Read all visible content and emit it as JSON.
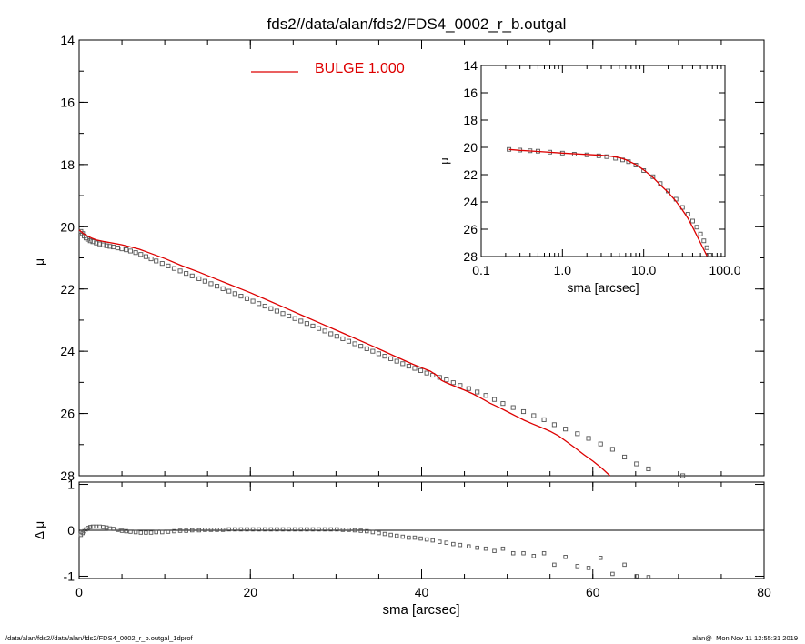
{
  "title": "fds2//data/alan/fds2/FDS4_0002_r_b.outgal",
  "footer": {
    "left": "/data/alan/fds2//data/alan/fds2/FDS4_0002_r_b.outgal_1dprof",
    "right": "alan@  Mon Nov 11 12:55:31 2019"
  },
  "colors": {
    "model": "#dd0000",
    "data": "#555555",
    "axes": "#000000"
  },
  "chart_data": [
    {
      "id": "main",
      "type": "scatter",
      "ylabel": "μ",
      "xlim": [
        0,
        80
      ],
      "ylim": [
        28,
        14
      ],
      "y_inverted": true,
      "x_ticks": [
        0,
        20,
        40,
        60,
        80
      ],
      "x_minor_step": 5,
      "y_ticks": [
        14,
        16,
        18,
        20,
        22,
        24,
        26,
        28
      ],
      "y_tick_labels": [
        "14",
        "16",
        "18",
        "20",
        "22",
        "24",
        "26",
        "28"
      ],
      "y_minor_step": 1,
      "legend": {
        "label": "BULGE",
        "value": "1.000",
        "text": "BULGE  1.000",
        "placement": "top-center"
      },
      "series": [
        {
          "role": "data",
          "marker": "open-square",
          "x": [
            0.2,
            0.4,
            0.6,
            0.8,
            1.0,
            1.3,
            1.6,
            2.0,
            2.4,
            2.8,
            3.2,
            3.6,
            4.0,
            4.5,
            5.0,
            5.5,
            6.0,
            6.6,
            7.2,
            7.8,
            8.4,
            9.0,
            9.7,
            10.4,
            11.1,
            11.8,
            12.5,
            13.2,
            14.0,
            14.7,
            15.4,
            16.1,
            16.8,
            17.5,
            18.2,
            18.9,
            19.6,
            20.3,
            21.0,
            21.7,
            22.4,
            23.1,
            23.8,
            24.5,
            25.2,
            25.9,
            26.6,
            27.3,
            28.0,
            28.7,
            29.4,
            30.1,
            30.8,
            31.5,
            32.2,
            32.9,
            33.6,
            34.3,
            35.0,
            35.7,
            36.4,
            37.1,
            37.8,
            38.5,
            39.2,
            39.9,
            40.6,
            41.3,
            42.1,
            42.9,
            43.7,
            44.5,
            45.5,
            46.5,
            47.5,
            48.5,
            49.5,
            50.7,
            51.9,
            53.1,
            54.3,
            55.5,
            56.8,
            58.2,
            59.5,
            60.9,
            62.3,
            63.7,
            65.1,
            66.5,
            70.5
          ],
          "y": [
            20.15,
            20.22,
            20.3,
            20.36,
            20.4,
            20.45,
            20.48,
            20.52,
            20.55,
            20.58,
            20.61,
            20.63,
            20.65,
            20.68,
            20.71,
            20.74,
            20.78,
            20.83,
            20.89,
            20.96,
            21.03,
            21.1,
            21.18,
            21.26,
            21.34,
            21.42,
            21.5,
            21.58,
            21.67,
            21.75,
            21.83,
            21.91,
            21.99,
            22.07,
            22.15,
            22.23,
            22.31,
            22.39,
            22.47,
            22.55,
            22.63,
            22.71,
            22.79,
            22.87,
            22.95,
            23.03,
            23.11,
            23.19,
            23.27,
            23.35,
            23.44,
            23.52,
            23.6,
            23.68,
            23.76,
            23.84,
            23.92,
            24.0,
            24.08,
            24.16,
            24.24,
            24.32,
            24.4,
            24.48,
            24.55,
            24.62,
            24.7,
            24.77,
            24.84,
            24.92,
            25.01,
            25.1,
            25.2,
            25.31,
            25.42,
            25.55,
            25.68,
            25.81,
            25.94,
            26.07,
            26.2,
            26.36,
            26.5,
            26.65,
            26.8,
            26.98,
            27.15,
            27.4,
            27.62,
            27.78,
            28.0
          ]
        },
        {
          "role": "model",
          "name": "BULGE",
          "x": [
            0,
            0.5,
            1,
            1.5,
            2,
            3,
            4,
            5,
            6,
            7,
            8,
            10,
            12,
            14,
            16,
            18,
            20,
            22,
            24,
            26,
            28,
            30,
            32,
            34,
            36,
            38,
            39,
            40,
            41,
            41.8,
            42.3,
            42.8,
            43.3,
            44,
            45,
            46,
            47,
            48,
            49,
            50,
            51,
            52,
            53,
            54,
            55,
            56,
            57,
            58,
            59,
            60,
            61,
            62
          ],
          "y": [
            20.1,
            20.22,
            20.3,
            20.37,
            20.42,
            20.48,
            20.53,
            20.58,
            20.65,
            20.72,
            20.82,
            21.02,
            21.25,
            21.46,
            21.68,
            21.9,
            22.12,
            22.36,
            22.6,
            22.84,
            23.08,
            23.32,
            23.56,
            23.8,
            24.05,
            24.3,
            24.42,
            24.53,
            24.64,
            24.78,
            24.93,
            25.0,
            25.06,
            25.14,
            25.25,
            25.37,
            25.52,
            25.67,
            25.8,
            25.94,
            26.08,
            26.22,
            26.34,
            26.45,
            26.57,
            26.72,
            26.92,
            27.12,
            27.33,
            27.53,
            27.75,
            28.0
          ]
        }
      ]
    },
    {
      "id": "inset",
      "type": "scatter",
      "xlabel": "sma [arcsec]",
      "ylabel": "μ",
      "x_scale": "log",
      "xlim": [
        0.1,
        100
      ],
      "ylim": [
        28,
        14
      ],
      "y_inverted": true,
      "x_ticks": [
        0.1,
        1.0,
        10.0,
        100.0
      ],
      "x_tick_labels": [
        "0.1",
        "1.0",
        "10.0",
        "100.0"
      ],
      "y_ticks": [
        14,
        16,
        18,
        20,
        22,
        24,
        26,
        28
      ],
      "y_tick_labels": [
        "14",
        "16",
        "18",
        "20",
        "22",
        "24",
        "26",
        "28"
      ],
      "series": [
        {
          "role": "data",
          "marker": "open-square",
          "x": [
            0.22,
            0.3,
            0.4,
            0.5,
            0.7,
            1.0,
            1.4,
            2.0,
            2.8,
            3.5,
            4.5,
            5.5,
            6.5,
            8,
            10,
            13,
            16,
            20,
            25,
            30,
            35,
            40,
            45,
            50,
            55,
            60,
            65
          ],
          "y": [
            20.15,
            20.2,
            20.25,
            20.28,
            20.35,
            20.42,
            20.5,
            20.55,
            20.62,
            20.68,
            20.8,
            20.92,
            21.05,
            21.3,
            21.7,
            22.15,
            22.65,
            23.2,
            23.8,
            24.4,
            24.9,
            25.4,
            25.85,
            26.35,
            26.85,
            27.35,
            27.9
          ]
        },
        {
          "role": "model",
          "x": [
            0.22,
            0.3,
            0.5,
            1,
            2,
            3,
            4,
            5,
            6,
            8,
            10,
            13,
            16,
            20,
            25,
            30,
            35,
            40,
            45,
            50,
            55,
            60,
            65
          ],
          "y": [
            20.15,
            20.22,
            20.3,
            20.42,
            20.52,
            20.58,
            20.65,
            20.75,
            20.9,
            21.25,
            21.65,
            22.2,
            22.75,
            23.3,
            23.95,
            24.6,
            25.2,
            25.85,
            26.45,
            27.0,
            27.5,
            27.95,
            28.3
          ]
        }
      ]
    },
    {
      "id": "residual",
      "type": "scatter",
      "xlabel": "sma [arcsec]",
      "ylabel": "Δ μ",
      "xlim": [
        0,
        80
      ],
      "ylim": [
        -1.05,
        1.05
      ],
      "x_ticks": [
        0,
        20,
        40,
        60,
        80
      ],
      "x_tick_labels": [
        "0",
        "20",
        "40",
        "60",
        "80"
      ],
      "x_minor_step": 5,
      "y_ticks": [
        -1,
        0,
        1
      ],
      "y_tick_labels": [
        "-1",
        "0",
        "1"
      ],
      "zero_line": true,
      "series": [
        {
          "role": "data",
          "marker": "open-square",
          "x": [
            0.2,
            0.4,
            0.6,
            0.8,
            1.0,
            1.3,
            1.6,
            2.0,
            2.4,
            2.8,
            3.2,
            3.6,
            4.0,
            4.5,
            5.0,
            5.5,
            6.0,
            6.6,
            7.2,
            7.8,
            8.4,
            9.0,
            9.7,
            10.4,
            11.1,
            11.8,
            12.5,
            13.2,
            14.0,
            14.7,
            15.4,
            16.1,
            16.8,
            17.5,
            18.2,
            18.9,
            19.6,
            20.3,
            21.0,
            21.7,
            22.4,
            23.1,
            23.8,
            24.5,
            25.2,
            25.9,
            26.6,
            27.3,
            28.0,
            28.7,
            29.4,
            30.1,
            30.8,
            31.5,
            32.2,
            32.9,
            33.6,
            34.3,
            35.0,
            35.7,
            36.4,
            37.1,
            37.8,
            38.5,
            39.2,
            39.9,
            40.6,
            41.3,
            42.1,
            42.9,
            43.7,
            44.5,
            45.5,
            46.5,
            47.5,
            48.5,
            49.5,
            50.7,
            51.9,
            53.1,
            54.3,
            55.5,
            56.8,
            58.2,
            59.5,
            60.9,
            62.3,
            63.7,
            65.1,
            66.5
          ],
          "y": [
            -0.1,
            -0.06,
            -0.02,
            0.02,
            0.05,
            0.07,
            0.08,
            0.08,
            0.08,
            0.07,
            0.06,
            0.04,
            0.03,
            0.01,
            -0.01,
            -0.02,
            -0.03,
            -0.04,
            -0.05,
            -0.05,
            -0.05,
            -0.04,
            -0.04,
            -0.03,
            -0.02,
            -0.01,
            -0.01,
            0.0,
            0.0,
            0.01,
            0.01,
            0.01,
            0.01,
            0.02,
            0.02,
            0.02,
            0.02,
            0.02,
            0.02,
            0.02,
            0.02,
            0.02,
            0.02,
            0.02,
            0.02,
            0.02,
            0.02,
            0.02,
            0.02,
            0.02,
            0.02,
            0.02,
            0.01,
            0.01,
            0.0,
            -0.01,
            -0.02,
            -0.04,
            -0.06,
            -0.08,
            -0.1,
            -0.12,
            -0.14,
            -0.16,
            -0.16,
            -0.18,
            -0.2,
            -0.22,
            -0.25,
            -0.27,
            -0.3,
            -0.32,
            -0.35,
            -0.38,
            -0.4,
            -0.45,
            -0.4,
            -0.5,
            -0.5,
            -0.56,
            -0.5,
            -0.75,
            -0.58,
            -0.78,
            -0.82,
            -0.6,
            -0.95,
            -0.75,
            -1.0,
            -1.02
          ]
        }
      ]
    }
  ]
}
